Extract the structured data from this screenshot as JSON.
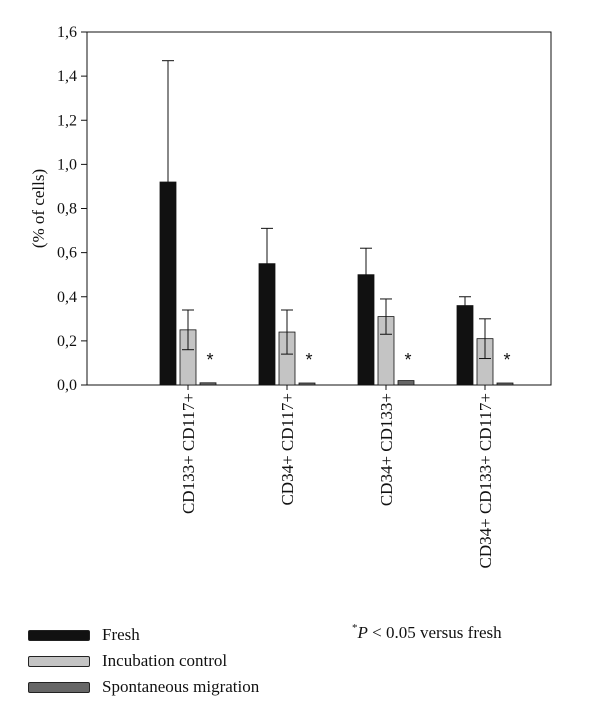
{
  "chart_data": {
    "type": "bar",
    "ylabel": "(% of cells)",
    "ylim": [
      0,
      1.6
    ],
    "yticks": [
      "0,0",
      "0,2",
      "0,4",
      "0,6",
      "0,8",
      "1,0",
      "1,2",
      "1,4",
      "1,6"
    ],
    "categories": [
      "CD133+ CD117+",
      "CD34+ CD117+",
      "CD34+ CD133+",
      "CD34+ CD133+ CD117+"
    ],
    "series": [
      {
        "name": "Fresh",
        "color": "#111111",
        "values": [
          0.92,
          0.55,
          0.5,
          0.36
        ],
        "errors": [
          0.55,
          0.16,
          0.12,
          0.04
        ]
      },
      {
        "name": "Incubation control",
        "color": "#c4c4c4",
        "values": [
          0.25,
          0.24,
          0.31,
          0.21
        ],
        "errors": [
          0.09,
          0.1,
          0.08,
          0.09
        ]
      },
      {
        "name": "Spontaneous migration",
        "color": "#666666",
        "values": [
          0.01,
          0.004,
          0.02,
          0.003
        ],
        "errors": [
          0.003,
          0.001,
          0.005,
          0.001
        ]
      }
    ],
    "annotations": [
      "*",
      "*",
      "*",
      "*"
    ],
    "grid": false,
    "legend": "bottom-left"
  },
  "footnote": {
    "mark": "*",
    "p": "P",
    "text": " < 0.05 versus fresh"
  }
}
